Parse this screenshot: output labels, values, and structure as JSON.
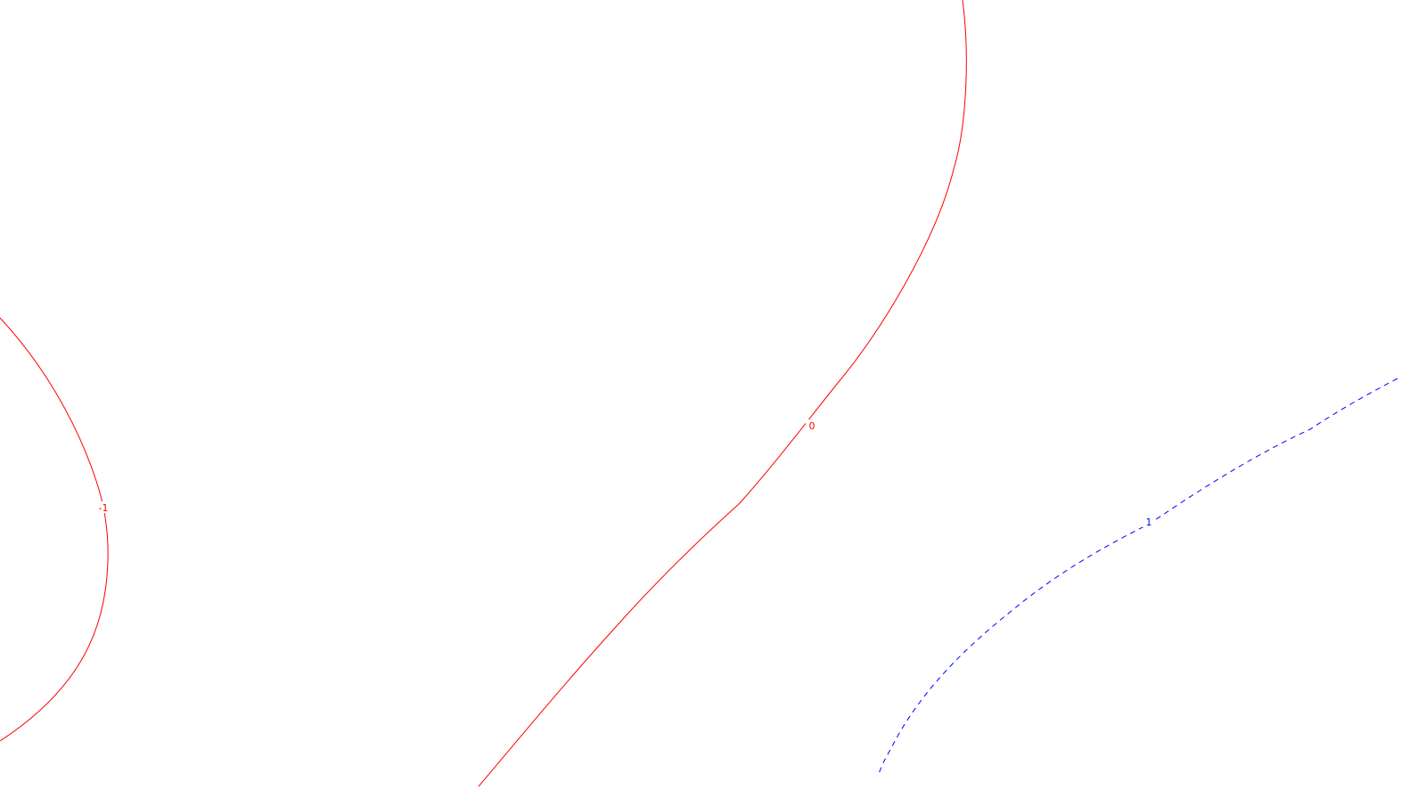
{
  "map": {
    "background": "#ffffff",
    "contours": [
      {
        "id": "contour-minus-1",
        "value_label": "-1",
        "color": "#ff0000",
        "style": "solid"
      },
      {
        "id": "contour-0",
        "value_label": "0",
        "color": "#ff0000",
        "style": "solid"
      },
      {
        "id": "contour-1",
        "value_label": "1",
        "color": "#0000ff",
        "style": "dashed"
      }
    ]
  }
}
